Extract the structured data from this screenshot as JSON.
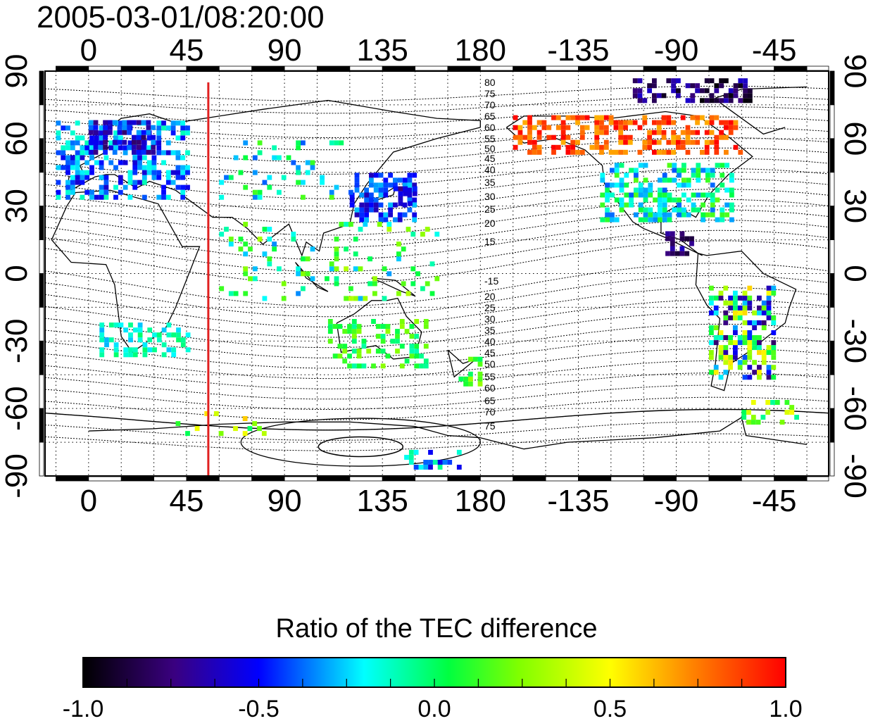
{
  "title": "2005-03-01/08:20:00",
  "map": {
    "lon_top_labels": [
      "0",
      "45",
      "90",
      "135",
      "180",
      "-135",
      "-90",
      "-45"
    ],
    "lon_bottom_labels": [
      "0",
      "45",
      "90",
      "135",
      "180",
      "-135",
      "-90",
      "-45"
    ],
    "lat_left_labels": [
      "90",
      "60",
      "30",
      "0",
      "-30",
      "-60",
      "-90"
    ],
    "lat_right_labels": [
      "90",
      "60",
      "30",
      "0",
      "-30",
      "-60",
      "-90"
    ],
    "lon_range": [
      -20,
      340
    ],
    "lat_range": [
      -90,
      90
    ],
    "grid": "dotted every 15 degrees",
    "meridian_marker_lon": 55,
    "meridian_marker_color": "#e02020",
    "maglat_labels_north": [
      "80",
      "75",
      "70",
      "65",
      "60",
      "55",
      "50",
      "45",
      "40",
      "35",
      "30",
      "25",
      "20",
      "15"
    ],
    "maglat_labels_south": [
      "-15",
      "20",
      "25",
      "30",
      "35",
      "40",
      "45",
      "50",
      "55",
      "60",
      "65",
      "70",
      "75"
    ]
  },
  "colorbar": {
    "title": "Ratio of the TEC difference",
    "tick_labels": [
      "-1.0",
      "-0.5",
      "0.0",
      "0.5",
      "1.0"
    ],
    "range": [
      -1.0,
      1.0
    ],
    "colors": [
      "#000000",
      "#3a0080",
      "#0000ff",
      "#00ffff",
      "#00ff00",
      "#ffff00",
      "#ff8000",
      "#ff0000"
    ]
  }
}
